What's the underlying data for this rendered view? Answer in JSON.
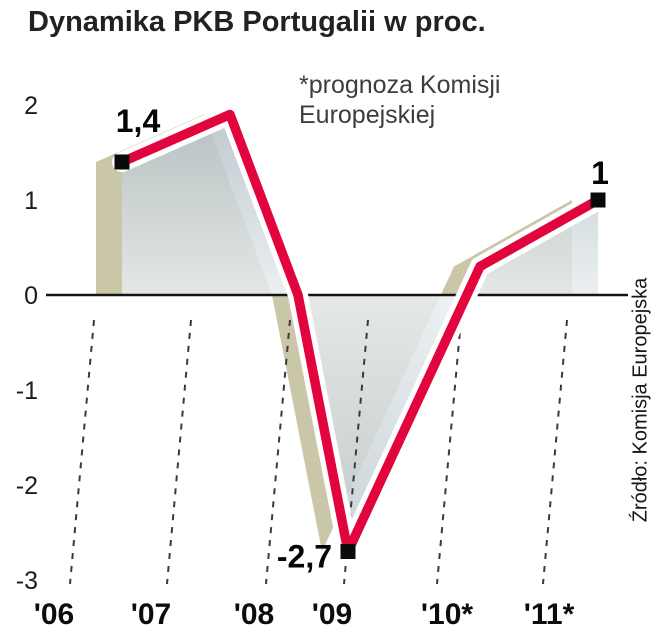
{
  "title": "Dynamika PKB Portugalii w proc.",
  "annotation": {
    "line1": "*prognoza Komisji",
    "line2": "Europejskiej"
  },
  "source": "Źródło: Komisja Europejska",
  "chart_data": {
    "type": "line",
    "title": "Dynamika PKB Portugalii w proc.",
    "categories": [
      "'06",
      "'07",
      "'08",
      "'09",
      "'10*",
      "'11*"
    ],
    "values": [
      1.4,
      1.9,
      0.0,
      -2.7,
      0.3,
      1.0
    ],
    "unit": "proc.",
    "ylim": [
      -3,
      2
    ],
    "yticks": [
      2,
      1,
      0,
      -1,
      -2,
      -3
    ],
    "data_labels": [
      {
        "category": "'06",
        "value": 1.4,
        "label": "1,4"
      },
      {
        "category": "'09",
        "value": -2.7,
        "label": "-2,7"
      },
      {
        "category": "'11*",
        "value": 1.0,
        "label": "1"
      }
    ],
    "footnote": "*prognoza Komisji Europejskiej",
    "grid": "slanted-dashed-below-zero",
    "marker": "square",
    "colors": {
      "line": "#e2043c",
      "line_casing": "#ffffff",
      "area": "#c3ced4",
      "area_shadow": "#9e9760",
      "axis": "#141414",
      "marker": "#0a0a0a"
    }
  }
}
